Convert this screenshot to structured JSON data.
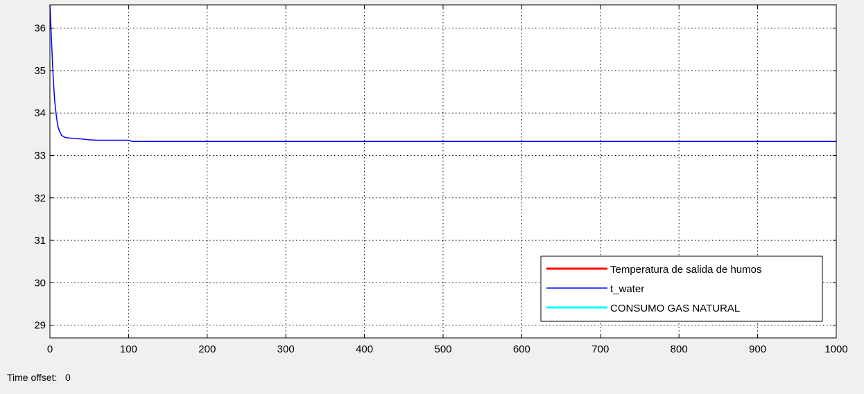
{
  "time_offset": {
    "label": "Time offset:",
    "value": "0"
  },
  "chart_data": {
    "type": "line",
    "title": "",
    "xlabel": "",
    "ylabel": "",
    "xlim": [
      0,
      1000
    ],
    "ylim": [
      28.7,
      36.55
    ],
    "x_ticks": [
      0,
      100,
      200,
      300,
      400,
      500,
      600,
      700,
      800,
      900,
      1000
    ],
    "y_ticks": [
      29,
      30,
      31,
      32,
      33,
      34,
      35,
      36
    ],
    "grid": true,
    "grid_style": "dotted",
    "background_color": "#ffffff",
    "axis_color": "#000000",
    "legend_position": "bottom-right",
    "series": [
      {
        "name": "Temperatura de salida de humos",
        "color": "#ff0000",
        "line_width": 3,
        "x": [],
        "y": []
      },
      {
        "name": "t_water",
        "color": "#0000ff",
        "line_width": 1.5,
        "x": [
          0,
          2,
          4,
          6,
          8,
          10,
          12,
          15,
          20,
          30,
          40,
          50,
          60,
          80,
          100,
          105,
          110,
          200,
          400,
          600,
          800,
          1000
        ],
        "y": [
          36.55,
          35.7,
          34.9,
          34.3,
          33.95,
          33.7,
          33.58,
          33.47,
          33.42,
          33.4,
          33.39,
          33.37,
          33.36,
          33.36,
          33.36,
          33.33,
          33.33,
          33.33,
          33.33,
          33.33,
          33.33,
          33.33
        ]
      },
      {
        "name": "CONSUMO GAS NATURAL",
        "color": "#00ffff",
        "line_width": 3,
        "x": [],
        "y": []
      }
    ]
  }
}
